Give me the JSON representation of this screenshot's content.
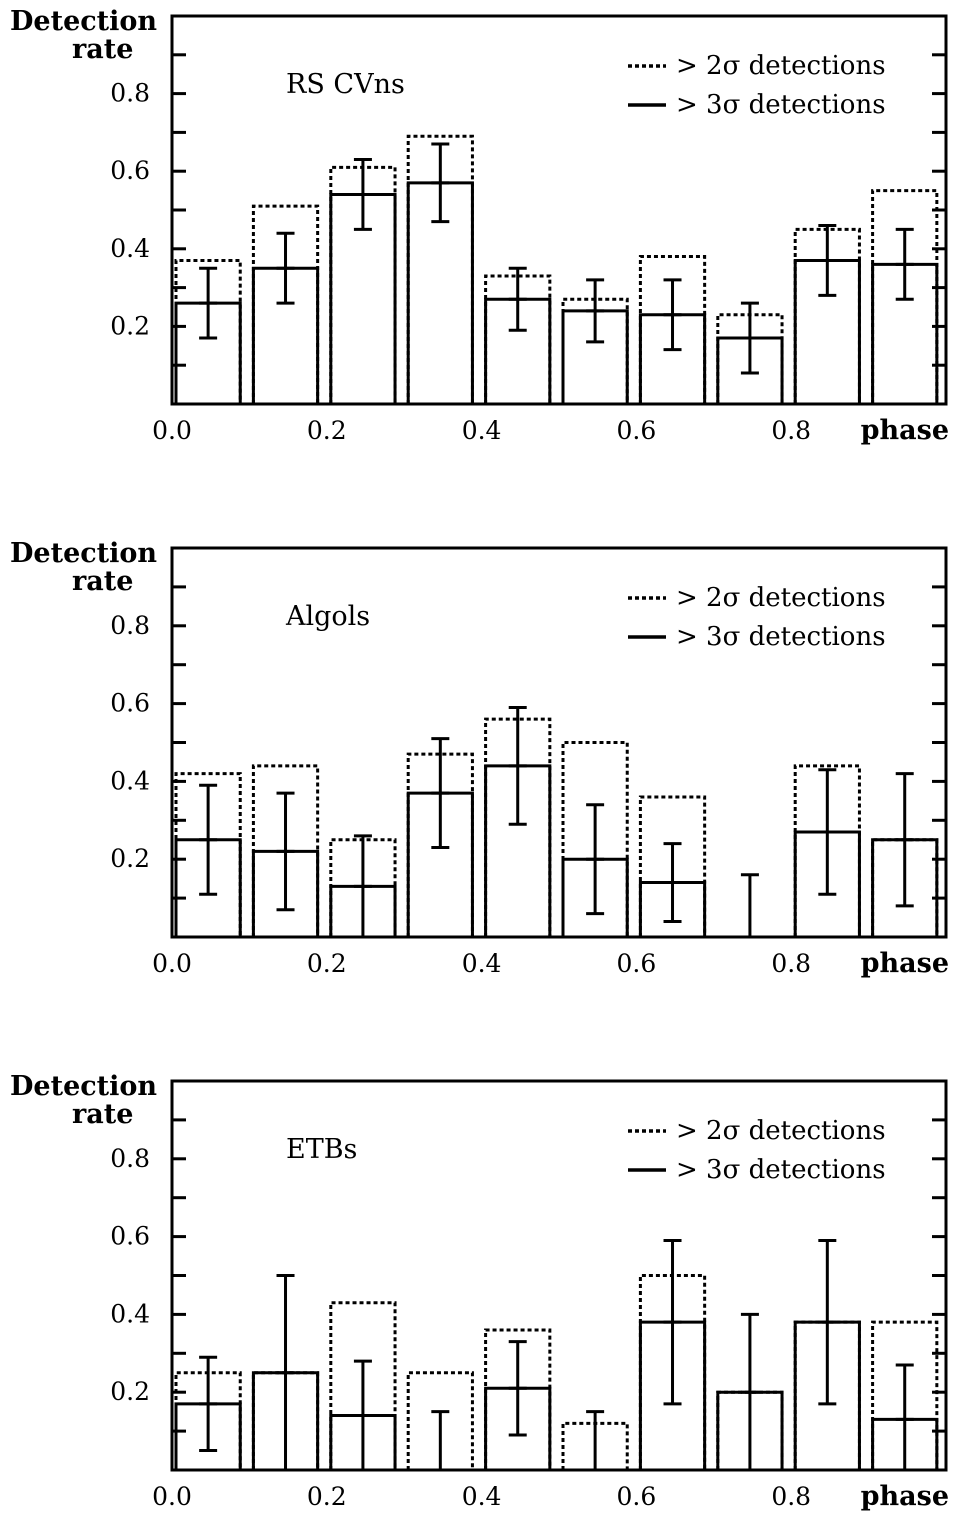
{
  "chart_data": [
    {
      "type": "bar",
      "panel_label": "RS CVns",
      "ylabel_line1": "Detection",
      "ylabel_line2": "rate",
      "xlabel": "phase",
      "xlim": [
        0,
        1
      ],
      "ylim": [
        0,
        1
      ],
      "x_ticks": [
        "0.0",
        "0.2",
        "0.4",
        "0.6",
        "0.8"
      ],
      "y_ticks": [
        "0.2",
        "0.4",
        "0.6",
        "0.8"
      ],
      "legend": [
        "> 2σ detections",
        "> 3σ detections"
      ],
      "legend_position": "top-right",
      "bin_starts": [
        0.0,
        0.1,
        0.2,
        0.3,
        0.4,
        0.5,
        0.6,
        0.7,
        0.8,
        0.9
      ],
      "series": [
        {
          "name": "> 2σ detections",
          "style": "dotted",
          "values": [
            0.37,
            0.51,
            0.61,
            0.69,
            0.33,
            0.27,
            0.38,
            0.23,
            0.45,
            0.55
          ]
        },
        {
          "name": "> 3σ detections",
          "style": "solid",
          "values": [
            0.26,
            0.35,
            0.54,
            0.57,
            0.27,
            0.24,
            0.23,
            0.17,
            0.37,
            0.36
          ]
        }
      ],
      "error_bars": {
        "center": [
          0.26,
          0.35,
          0.54,
          0.57,
          0.27,
          0.24,
          0.23,
          0.17,
          0.37,
          0.36
        ],
        "low": [
          0.17,
          0.26,
          0.45,
          0.47,
          0.19,
          0.16,
          0.14,
          0.08,
          0.28,
          0.27
        ],
        "high": [
          0.35,
          0.44,
          0.63,
          0.67,
          0.35,
          0.32,
          0.32,
          0.26,
          0.46,
          0.45
        ]
      }
    },
    {
      "type": "bar",
      "panel_label": "Algols",
      "ylabel_line1": "Detection",
      "ylabel_line2": "rate",
      "xlabel": "phase",
      "xlim": [
        0,
        1
      ],
      "ylim": [
        0,
        1
      ],
      "x_ticks": [
        "0.0",
        "0.2",
        "0.4",
        "0.6",
        "0.8"
      ],
      "y_ticks": [
        "0.2",
        "0.4",
        "0.6",
        "0.8"
      ],
      "legend": [
        "> 2σ detections",
        "> 3σ detections"
      ],
      "legend_position": "top-right",
      "bin_starts": [
        0.0,
        0.1,
        0.2,
        0.3,
        0.4,
        0.5,
        0.6,
        0.7,
        0.8,
        0.9
      ],
      "series": [
        {
          "name": "> 2σ detections",
          "style": "dotted",
          "values": [
            0.42,
            0.44,
            0.25,
            0.47,
            0.56,
            0.5,
            0.36,
            0.0,
            0.44,
            0.25
          ]
        },
        {
          "name": "> 3σ detections",
          "style": "solid",
          "values": [
            0.25,
            0.22,
            0.13,
            0.37,
            0.44,
            0.2,
            0.14,
            0.0,
            0.27,
            0.25
          ]
        }
      ],
      "error_bars": {
        "center": [
          0.25,
          0.22,
          0.13,
          0.37,
          0.44,
          0.2,
          0.14,
          0.0,
          0.27,
          0.25
        ],
        "low": [
          0.11,
          0.07,
          0.0,
          0.23,
          0.29,
          0.06,
          0.04,
          0.0,
          0.11,
          0.08
        ],
        "high": [
          0.39,
          0.37,
          0.26,
          0.51,
          0.59,
          0.34,
          0.24,
          0.16,
          0.43,
          0.42
        ]
      }
    },
    {
      "type": "bar",
      "panel_label": "ETBs",
      "ylabel_line1": "Detection",
      "ylabel_line2": "rate",
      "xlabel": "phase",
      "xlim": [
        0,
        1
      ],
      "ylim": [
        0,
        1
      ],
      "x_ticks": [
        "0.0",
        "0.2",
        "0.4",
        "0.6",
        "0.8"
      ],
      "y_ticks": [
        "0.2",
        "0.4",
        "0.6",
        "0.8"
      ],
      "legend": [
        "> 2σ detections",
        "> 3σ detections"
      ],
      "legend_position": "top-right",
      "bin_starts": [
        0.0,
        0.1,
        0.2,
        0.3,
        0.4,
        0.5,
        0.6,
        0.7,
        0.8,
        0.9
      ],
      "series": [
        {
          "name": "> 2σ detections",
          "style": "dotted",
          "values": [
            0.25,
            0.25,
            0.43,
            0.25,
            0.36,
            0.12,
            0.5,
            0.2,
            0.38,
            0.38
          ]
        },
        {
          "name": "> 3σ detections",
          "style": "solid",
          "values": [
            0.17,
            0.25,
            0.14,
            0.0,
            0.21,
            0.0,
            0.38,
            0.2,
            0.38,
            0.13
          ]
        }
      ],
      "error_bars": {
        "center": [
          0.17,
          0.25,
          0.14,
          0.0,
          0.21,
          0.0,
          0.38,
          0.2,
          0.38,
          0.13
        ],
        "low": [
          0.05,
          0.0,
          0.0,
          0.0,
          0.09,
          0.0,
          0.17,
          0.0,
          0.17,
          0.0
        ],
        "high": [
          0.29,
          0.5,
          0.28,
          0.15,
          0.33,
          0.15,
          0.59,
          0.4,
          0.59,
          0.27
        ]
      }
    }
  ]
}
